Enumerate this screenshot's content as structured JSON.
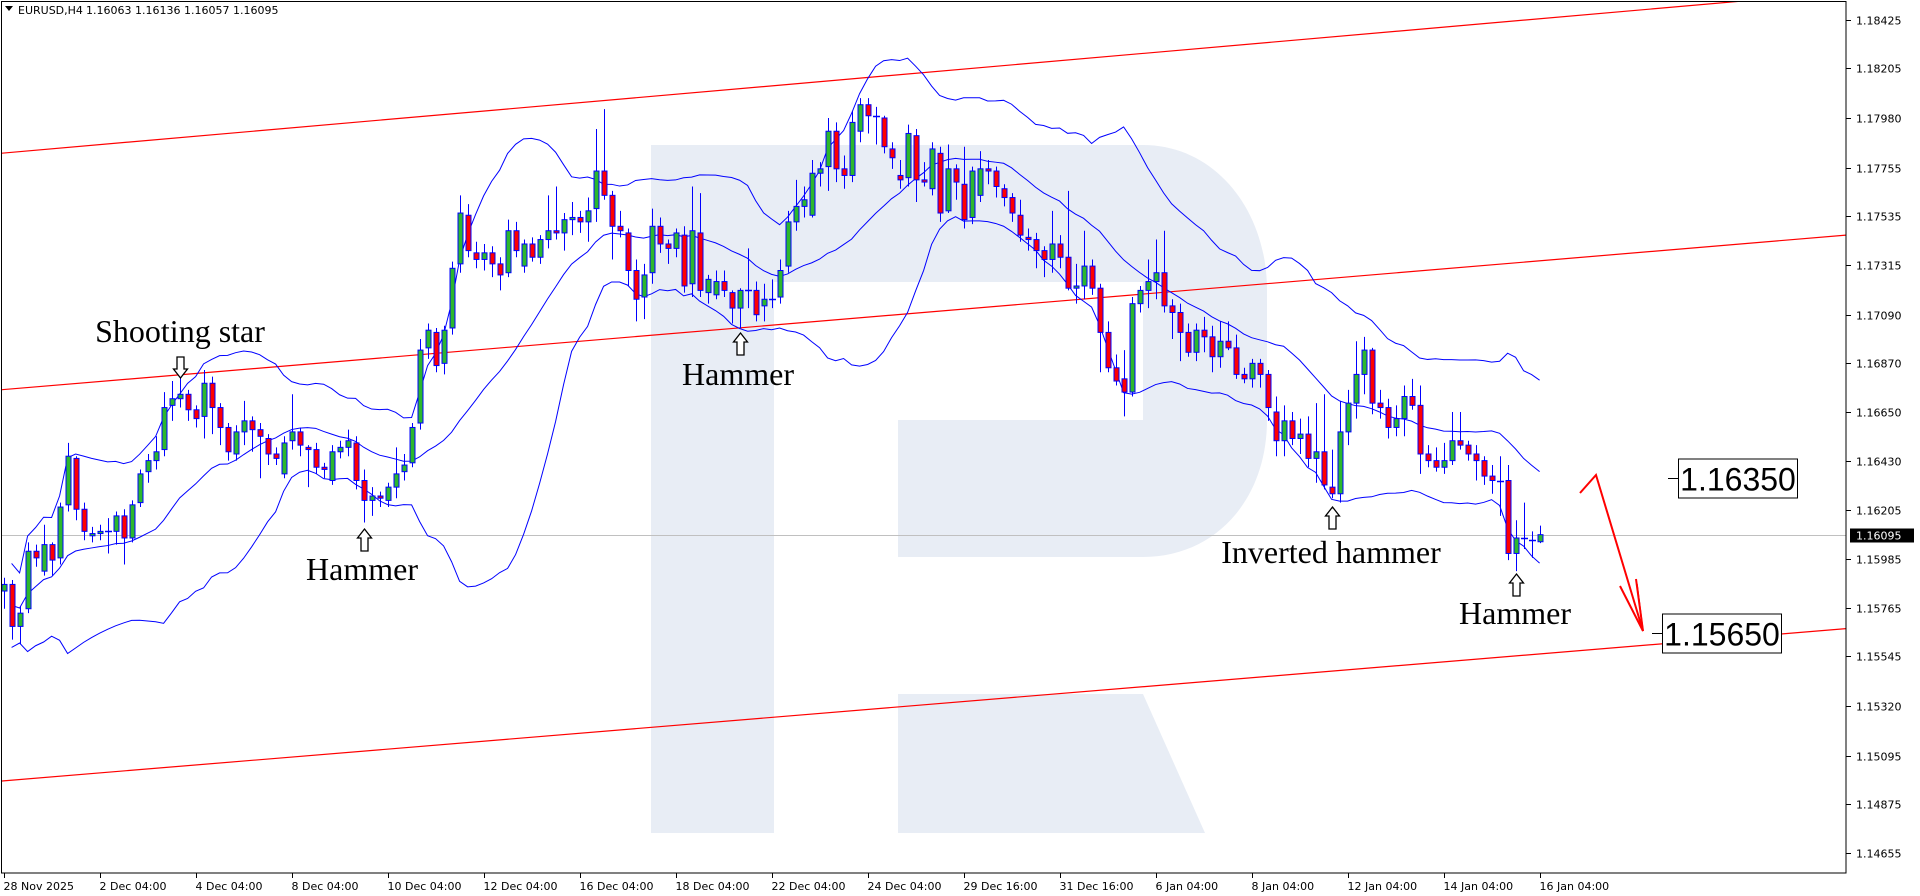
{
  "header": {
    "symbol_timeframe": "EURUSD,H4",
    "ohlc": "1.16063 1.16136 1.16057 1.16095",
    "menu_icon": "triangle-down-icon"
  },
  "chart_data": {
    "type": "candlestick",
    "symbol": "EURUSD",
    "timeframe": "H4",
    "price_ticks": [
      "1.18425",
      "1.18205",
      "1.17980",
      "1.17755",
      "1.17535",
      "1.17315",
      "1.17090",
      "1.16870",
      "1.16650",
      "1.16430",
      "1.16205",
      "1.15985",
      "1.15765",
      "1.15545",
      "1.15320",
      "1.15095",
      "1.14875",
      "1.14655"
    ],
    "time_labels": [
      "28 Nov 2025",
      "2 Dec 04:00",
      "4 Dec 04:00",
      "8 Dec 04:00",
      "10 Dec 04:00",
      "12 Dec 04:00",
      "16 Dec 04:00",
      "18 Dec 04:00",
      "22 Dec 04:00",
      "24 Dec 04:00",
      "29 Dec 16:00",
      "31 Dec 16:00",
      "6 Jan 04:00",
      "8 Jan 04:00",
      "12 Jan 04:00",
      "14 Jan 04:00",
      "16 Jan 04:00"
    ],
    "current_price": "1.16095",
    "grid": false,
    "indicator": "Bollinger Bands",
    "colors": {
      "bull": "#2db82d",
      "bear": "#ff0000",
      "candle_outline": "#0000ff",
      "bands": "#0000ff",
      "channel": "#ff0000",
      "forecast_arrow": "#ff0000",
      "current_price_line": "#c0c0c0",
      "watermark": "#e8edf5"
    },
    "channel_lines": [
      {
        "left_price": 1.1782,
        "right_price": 1.1855
      },
      {
        "left_price": 1.1675,
        "right_price": 1.1745
      },
      {
        "left_price": 1.1498,
        "right_price": 1.1567
      }
    ],
    "annotations": [
      {
        "label": "Shooting star",
        "candle_index": 22,
        "arrow": "down"
      },
      {
        "label": "Hammer",
        "candle_index": 45,
        "arrow": "up"
      },
      {
        "label": "Hammer",
        "candle_index": 92,
        "arrow": "up"
      },
      {
        "label": "Inverted hammer",
        "candle_index": 166,
        "arrow": "up"
      },
      {
        "label": "Hammer",
        "candle_index": 189,
        "arrow": "up"
      }
    ],
    "levels": [
      {
        "value": "1.16350",
        "price": 1.1635
      },
      {
        "value": "1.15650",
        "price": 1.1565
      }
    ],
    "candles": [
      [
        1.1584,
        1.159,
        1.1576,
        1.1587
      ],
      [
        1.1587,
        1.1589,
        1.1562,
        1.1568
      ],
      [
        1.1568,
        1.1577,
        1.156,
        1.1574
      ],
      [
        1.1576,
        1.1606,
        1.1574,
        1.1602
      ],
      [
        1.1602,
        1.1605,
        1.1595,
        1.1599
      ],
      [
        1.1593,
        1.1614,
        1.1591,
        1.1605
      ],
      [
        1.1605,
        1.1606,
        1.1591,
        1.1598
      ],
      [
        1.1599,
        1.1624,
        1.1596,
        1.1622
      ],
      [
        1.1623,
        1.1651,
        1.162,
        1.1645
      ],
      [
        1.1644,
        1.1645,
        1.1616,
        1.1621
      ],
      [
        1.1621,
        1.1624,
        1.1607,
        1.1611
      ],
      [
        1.1609,
        1.1613,
        1.1606,
        1.161
      ],
      [
        1.161,
        1.1614,
        1.1607,
        1.1611
      ],
      [
        1.1611,
        1.1617,
        1.1601,
        1.1611
      ],
      [
        1.1611,
        1.162,
        1.1605,
        1.1618
      ],
      [
        1.1618,
        1.1621,
        1.1596,
        1.1608
      ],
      [
        1.1608,
        1.1625,
        1.1606,
        1.1623
      ],
      [
        1.1624,
        1.1639,
        1.1622,
        1.1637
      ],
      [
        1.1638,
        1.1646,
        1.1633,
        1.1643
      ],
      [
        1.1643,
        1.1654,
        1.1639,
        1.1647
      ],
      [
        1.1648,
        1.1674,
        1.1645,
        1.1667
      ],
      [
        1.1668,
        1.1679,
        1.1661,
        1.1671
      ],
      [
        1.1671,
        1.1682,
        1.1667,
        1.1673
      ],
      [
        1.1673,
        1.1675,
        1.1661,
        1.1666
      ],
      [
        1.1666,
        1.1668,
        1.1658,
        1.1662
      ],
      [
        1.1663,
        1.1684,
        1.1653,
        1.1678
      ],
      [
        1.1678,
        1.1681,
        1.1655,
        1.1667
      ],
      [
        1.1667,
        1.1669,
        1.165,
        1.1658
      ],
      [
        1.1658,
        1.166,
        1.1643,
        1.1647
      ],
      [
        1.1646,
        1.1659,
        1.1643,
        1.1656
      ],
      [
        1.1656,
        1.167,
        1.165,
        1.1661
      ],
      [
        1.1661,
        1.1663,
        1.1647,
        1.1657
      ],
      [
        1.1657,
        1.166,
        1.1635,
        1.1654
      ],
      [
        1.1653,
        1.1655,
        1.1641,
        1.1646
      ],
      [
        1.1646,
        1.1649,
        1.1641,
        1.1644
      ],
      [
        1.1637,
        1.1654,
        1.1635,
        1.1651
      ],
      [
        1.1652,
        1.1673,
        1.1648,
        1.1656
      ],
      [
        1.1656,
        1.1658,
        1.1645,
        1.165
      ],
      [
        1.1649,
        1.165,
        1.1631,
        1.1648
      ],
      [
        1.1648,
        1.1651,
        1.1637,
        1.164
      ],
      [
        1.164,
        1.1642,
        1.1635,
        1.1639
      ],
      [
        1.1634,
        1.165,
        1.1632,
        1.1647
      ],
      [
        1.1647,
        1.1652,
        1.1644,
        1.1649
      ],
      [
        1.1649,
        1.1657,
        1.1645,
        1.1652
      ],
      [
        1.1651,
        1.1654,
        1.163,
        1.1634
      ],
      [
        1.1634,
        1.1639,
        1.1615,
        1.1625
      ],
      [
        1.1625,
        1.1631,
        1.1618,
        1.1627
      ],
      [
        1.1627,
        1.1629,
        1.1622,
        1.1626
      ],
      [
        1.1625,
        1.1633,
        1.1622,
        1.1631
      ],
      [
        1.1631,
        1.1649,
        1.1626,
        1.1637
      ],
      [
        1.1638,
        1.1646,
        1.1634,
        1.1641
      ],
      [
        1.1642,
        1.166,
        1.164,
        1.1658
      ],
      [
        1.166,
        1.1698,
        1.1657,
        1.1693
      ],
      [
        1.1694,
        1.1705,
        1.1689,
        1.1702
      ],
      [
        1.1701,
        1.1703,
        1.1683,
        1.1686
      ],
      [
        1.1687,
        1.1704,
        1.1682,
        1.1702
      ],
      [
        1.1703,
        1.1733,
        1.17,
        1.173
      ],
      [
        1.1732,
        1.1763,
        1.1728,
        1.1755
      ],
      [
        1.1754,
        1.1759,
        1.1735,
        1.1738
      ],
      [
        1.1737,
        1.1742,
        1.173,
        1.1734
      ],
      [
        1.1734,
        1.1741,
        1.1729,
        1.1737
      ],
      [
        1.1737,
        1.174,
        1.1726,
        1.1732
      ],
      [
        1.1732,
        1.1735,
        1.172,
        1.1727
      ],
      [
        1.1728,
        1.1752,
        1.1726,
        1.1747
      ],
      [
        1.1747,
        1.1751,
        1.1735,
        1.1738
      ],
      [
        1.1731,
        1.1743,
        1.1728,
        1.1741
      ],
      [
        1.1741,
        1.1744,
        1.1733,
        1.1735
      ],
      [
        1.1735,
        1.1745,
        1.1732,
        1.1743
      ],
      [
        1.1743,
        1.1763,
        1.1739,
        1.1747
      ],
      [
        1.1747,
        1.1767,
        1.1743,
        1.1746
      ],
      [
        1.1746,
        1.1755,
        1.1738,
        1.1752
      ],
      [
        1.1752,
        1.176,
        1.1745,
        1.1753
      ],
      [
        1.1753,
        1.1756,
        1.1746,
        1.1751
      ],
      [
        1.1751,
        1.1762,
        1.1742,
        1.1756
      ],
      [
        1.1757,
        1.1793,
        1.1751,
        1.1774
      ],
      [
        1.1774,
        1.1802,
        1.1761,
        1.1763
      ],
      [
        1.1763,
        1.1765,
        1.1734,
        1.1749
      ],
      [
        1.1749,
        1.1756,
        1.1744,
        1.1747
      ],
      [
        1.1746,
        1.1748,
        1.1722,
        1.1729
      ],
      [
        1.1729,
        1.1734,
        1.1706,
        1.1716
      ],
      [
        1.1717,
        1.1732,
        1.1707,
        1.1727
      ],
      [
        1.1728,
        1.1757,
        1.1723,
        1.1749
      ],
      [
        1.1749,
        1.1753,
        1.1737,
        1.1741
      ],
      [
        1.1741,
        1.1743,
        1.1732,
        1.1739
      ],
      [
        1.1739,
        1.1748,
        1.1735,
        1.1746
      ],
      [
        1.1745,
        1.1749,
        1.1719,
        1.1722
      ],
      [
        1.1723,
        1.1767,
        1.1717,
        1.1747
      ],
      [
        1.1746,
        1.1764,
        1.1717,
        1.172
      ],
      [
        1.1719,
        1.1727,
        1.1714,
        1.1725
      ],
      [
        1.1718,
        1.1729,
        1.1716,
        1.1724
      ],
      [
        1.1724,
        1.1729,
        1.1717,
        1.172
      ],
      [
        1.1719,
        1.172,
        1.1705,
        1.1712
      ],
      [
        1.1712,
        1.1721,
        1.1703,
        1.172
      ],
      [
        1.172,
        1.1739,
        1.1712,
        1.172
      ],
      [
        1.172,
        1.1724,
        1.1706,
        1.1709
      ],
      [
        1.1713,
        1.1723,
        1.1706,
        1.1716
      ],
      [
        1.1716,
        1.1725,
        1.1712,
        1.1716
      ],
      [
        1.1717,
        1.1734,
        1.1714,
        1.1729
      ],
      [
        1.1731,
        1.1756,
        1.1728,
        1.1751
      ],
      [
        1.1751,
        1.177,
        1.1747,
        1.1758
      ],
      [
        1.1758,
        1.1767,
        1.1753,
        1.1761
      ],
      [
        1.1754,
        1.1779,
        1.1753,
        1.1773
      ],
      [
        1.1773,
        1.1778,
        1.1767,
        1.1775
      ],
      [
        1.1776,
        1.1798,
        1.1765,
        1.1792
      ],
      [
        1.1792,
        1.1796,
        1.1769,
        1.1775
      ],
      [
        1.1775,
        1.1781,
        1.1766,
        1.1772
      ],
      [
        1.1772,
        1.1801,
        1.1769,
        1.1796
      ],
      [
        1.1792,
        1.1807,
        1.1787,
        1.1804
      ],
      [
        1.1804,
        1.1807,
        1.1791,
        1.1799
      ],
      [
        1.1799,
        1.1803,
        1.1786,
        1.1799
      ],
      [
        1.1798,
        1.1799,
        1.1782,
        1.1785
      ],
      [
        1.1784,
        1.1787,
        1.1775,
        1.178
      ],
      [
        1.1772,
        1.1779,
        1.1766,
        1.177
      ],
      [
        1.1771,
        1.1795,
        1.1767,
        1.1791
      ],
      [
        1.179,
        1.1793,
        1.176,
        1.177
      ],
      [
        1.177,
        1.1778,
        1.1767,
        1.1769
      ],
      [
        1.1766,
        1.1787,
        1.1763,
        1.1784
      ],
      [
        1.1782,
        1.1785,
        1.1751,
        1.1755
      ],
      [
        1.1756,
        1.1786,
        1.1755,
        1.1775
      ],
      [
        1.1775,
        1.1777,
        1.1761,
        1.1769
      ],
      [
        1.1768,
        1.1785,
        1.1748,
        1.1752
      ],
      [
        1.1753,
        1.1776,
        1.175,
        1.1774
      ],
      [
        1.1763,
        1.1783,
        1.176,
        1.1775
      ],
      [
        1.1775,
        1.1779,
        1.1768,
        1.1774
      ],
      [
        1.1774,
        1.1776,
        1.1762,
        1.1767
      ],
      [
        1.1766,
        1.1768,
        1.1758,
        1.1762
      ],
      [
        1.1762,
        1.1764,
        1.1751,
        1.1755
      ],
      [
        1.1754,
        1.1761,
        1.1742,
        1.1745
      ],
      [
        1.1744,
        1.1748,
        1.1738,
        1.1743
      ],
      [
        1.1743,
        1.1746,
        1.173,
        1.1738
      ],
      [
        1.1738,
        1.174,
        1.1726,
        1.1734
      ],
      [
        1.1734,
        1.1756,
        1.1728,
        1.1741
      ],
      [
        1.1741,
        1.1745,
        1.173,
        1.1735
      ],
      [
        1.1735,
        1.1765,
        1.172,
        1.1721
      ],
      [
        1.1721,
        1.1732,
        1.1714,
        1.1722
      ],
      [
        1.1722,
        1.1747,
        1.1716,
        1.1731
      ],
      [
        1.1731,
        1.1734,
        1.1718,
        1.1721
      ],
      [
        1.1721,
        1.1723,
        1.1683,
        1.1701
      ],
      [
        1.1701,
        1.1706,
        1.1683,
        1.1685
      ],
      [
        1.1685,
        1.1691,
        1.1677,
        1.1679
      ],
      [
        1.168,
        1.1693,
        1.1663,
        1.1674
      ],
      [
        1.1674,
        1.1717,
        1.1672,
        1.1714
      ],
      [
        1.1714,
        1.1722,
        1.171,
        1.172
      ],
      [
        1.172,
        1.1734,
        1.1712,
        1.1724
      ],
      [
        1.1724,
        1.1743,
        1.1716,
        1.1728
      ],
      [
        1.1728,
        1.1747,
        1.171,
        1.1713
      ],
      [
        1.1713,
        1.1716,
        1.1698,
        1.171
      ],
      [
        1.171,
        1.1714,
        1.1688,
        1.1701
      ],
      [
        1.1701,
        1.1705,
        1.169,
        1.1692
      ],
      [
        1.1692,
        1.1705,
        1.1688,
        1.1702
      ],
      [
        1.1702,
        1.1708,
        1.1692,
        1.1699
      ],
      [
        1.1699,
        1.1704,
        1.1683,
        1.169
      ],
      [
        1.169,
        1.1706,
        1.1685,
        1.1697
      ],
      [
        1.1697,
        1.1706,
        1.1693,
        1.1694
      ],
      [
        1.1694,
        1.17,
        1.168,
        1.1682
      ],
      [
        1.1682,
        1.1685,
        1.1678,
        1.168
      ],
      [
        1.168,
        1.1689,
        1.1676,
        1.1687
      ],
      [
        1.1687,
        1.1689,
        1.1676,
        1.1682
      ],
      [
        1.1682,
        1.1684,
        1.1661,
        1.1667
      ],
      [
        1.1665,
        1.1672,
        1.1645,
        1.1652
      ],
      [
        1.1652,
        1.1668,
        1.1645,
        1.1661
      ],
      [
        1.1661,
        1.1665,
        1.165,
        1.1653
      ],
      [
        1.1653,
        1.1662,
        1.1646,
        1.1655
      ],
      [
        1.1655,
        1.1663,
        1.164,
        1.1644
      ],
      [
        1.1644,
        1.1669,
        1.1633,
        1.1647
      ],
      [
        1.1647,
        1.1673,
        1.163,
        1.1632
      ],
      [
        1.1631,
        1.1648,
        1.1626,
        1.1628
      ],
      [
        1.1628,
        1.167,
        1.1624,
        1.1656
      ],
      [
        1.1656,
        1.1675,
        1.165,
        1.1669
      ],
      [
        1.1669,
        1.1697,
        1.1662,
        1.1682
      ],
      [
        1.1682,
        1.1699,
        1.1673,
        1.1693
      ],
      [
        1.1693,
        1.1694,
        1.1664,
        1.1669
      ],
      [
        1.1669,
        1.1675,
        1.1662,
        1.1667
      ],
      [
        1.1667,
        1.1671,
        1.1653,
        1.1658
      ],
      [
        1.1658,
        1.1668,
        1.1654,
        1.1662
      ],
      [
        1.1662,
        1.1677,
        1.1654,
        1.1672
      ],
      [
        1.1672,
        1.168,
        1.1666,
        1.1668
      ],
      [
        1.1668,
        1.1677,
        1.1637,
        1.1646
      ],
      [
        1.1646,
        1.165,
        1.164,
        1.1643
      ],
      [
        1.1643,
        1.1649,
        1.1638,
        1.164
      ],
      [
        1.164,
        1.1651,
        1.1637,
        1.1643
      ],
      [
        1.1643,
        1.1665,
        1.1641,
        1.1652
      ],
      [
        1.1652,
        1.1665,
        1.1648,
        1.165
      ],
      [
        1.165,
        1.1652,
        1.1643,
        1.1646
      ],
      [
        1.1646,
        1.165,
        1.1634,
        1.1643
      ],
      [
        1.1643,
        1.1645,
        1.1632,
        1.1636
      ],
      [
        1.1636,
        1.1641,
        1.1628,
        1.1634
      ],
      [
        1.1634,
        1.1645,
        1.1618,
        1.1634
      ],
      [
        1.1634,
        1.1641,
        1.1598,
        1.1601
      ],
      [
        1.1601,
        1.1616,
        1.1593,
        1.1608
      ],
      [
        1.1608,
        1.1624,
        1.1603,
        1.1608
      ],
      [
        1.1607,
        1.1611,
        1.1599,
        1.1607
      ],
      [
        1.16063,
        1.16136,
        1.16057,
        1.16095
      ]
    ]
  }
}
